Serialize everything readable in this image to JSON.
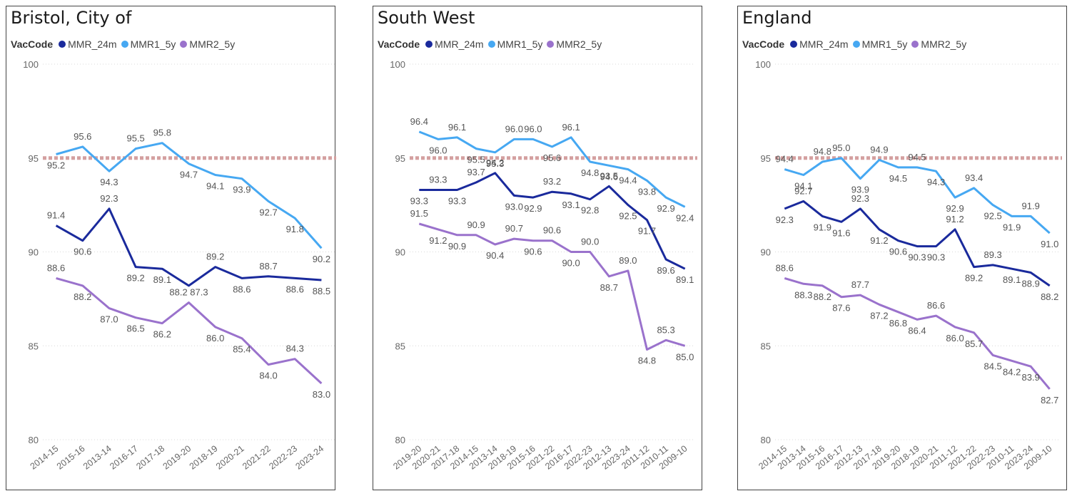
{
  "legend_title": "VacCode",
  "series_names": [
    "MMR_24m",
    "MMR1_5y",
    "MMR2_5y"
  ],
  "colors": {
    "MMR_24m": "#1a2a9c",
    "MMR1_5y": "#46a8f2",
    "MMR2_5y": "#9a72cc",
    "target": "#d4a0a0",
    "axis_text": "#666666",
    "label_text": "#555555"
  },
  "chart_data": [
    {
      "type": "line",
      "title": "Bristol, City of",
      "categories": [
        "2014-15",
        "2015-16",
        "2013-14",
        "2016-17",
        "2017-18",
        "2019-20",
        "2018-19",
        "2020-21",
        "2021-22",
        "2022-23",
        "2023-24"
      ],
      "ylim": [
        80,
        100
      ],
      "yticks": [
        80,
        85,
        90,
        95,
        100
      ],
      "reference_line": 95,
      "series": [
        {
          "name": "MMR_24m",
          "values": [
            91.4,
            90.6,
            92.3,
            89.2,
            89.1,
            88.2,
            89.2,
            88.6,
            88.7,
            88.6,
            88.5
          ]
        },
        {
          "name": "MMR1_5y",
          "values": [
            95.2,
            95.6,
            94.3,
            95.5,
            95.8,
            94.7,
            94.1,
            93.9,
            92.7,
            91.8,
            90.2
          ]
        },
        {
          "name": "MMR2_5y",
          "values": [
            88.6,
            88.2,
            87.0,
            86.5,
            86.2,
            87.3,
            86.0,
            85.4,
            84.0,
            84.3,
            83.0
          ]
        }
      ],
      "labels": [
        [
          "91.4",
          "90.6",
          "92.3",
          "89.2",
          "89.1",
          "",
          "89.2",
          "88.6",
          "88.7",
          "88.6",
          "88.5"
        ],
        [
          "95.2",
          "95.6",
          "94.3",
          "95.5",
          "95.8",
          "94.7",
          "94.1",
          "93.9",
          "92.7",
          "91.8",
          "90.2"
        ],
        [
          "88.6",
          "88.2",
          "87.0",
          "86.5",
          "86.2",
          "88.2 87.3",
          "86.0",
          "85.4",
          "84.0",
          "84.3",
          "83.0"
        ]
      ]
    },
    {
      "type": "line",
      "title": "South West",
      "categories": [
        "2019-20",
        "2020-21",
        "2017-18",
        "2014-15",
        "2013-14",
        "2018-19",
        "2015-16",
        "2021-22",
        "2016-17",
        "2022-23",
        "2012-13",
        "2023-24",
        "2011-12",
        "2010-11",
        "2009-10"
      ],
      "ylim": [
        80,
        100
      ],
      "yticks": [
        80,
        85,
        90,
        95,
        100
      ],
      "reference_line": 95,
      "series": [
        {
          "name": "MMR_24m",
          "values": [
            93.3,
            93.3,
            93.3,
            93.7,
            94.2,
            93.0,
            92.9,
            93.2,
            93.1,
            92.8,
            93.5,
            92.5,
            91.7,
            89.6,
            89.1
          ]
        },
        {
          "name": "MMR1_5y",
          "values": [
            96.4,
            96.0,
            96.1,
            95.5,
            95.3,
            96.0,
            96.0,
            95.6,
            96.1,
            94.8,
            94.6,
            94.4,
            93.8,
            92.9,
            92.4
          ]
        },
        {
          "name": "MMR2_5y",
          "values": [
            91.5,
            91.2,
            90.9,
            90.9,
            90.4,
            90.7,
            90.6,
            90.6,
            90.0,
            90.0,
            88.7,
            89.0,
            84.8,
            85.3,
            85.0
          ]
        }
      ],
      "labels": [
        [
          "93.3",
          "93.3",
          "93.3",
          "93.7",
          "94.2",
          "93.0",
          "92.9",
          "93.2",
          "93.1",
          "92.8",
          "93.5",
          "92.5",
          "91.7",
          "89.6",
          "89.1"
        ],
        [
          "96.4",
          "96.0",
          "96.1",
          "95.5",
          "95.3",
          "96.0",
          "96.0",
          "95.6",
          "96.1",
          "94.8",
          "94.6",
          "94.4",
          "93.8",
          "92.9",
          "92.4"
        ],
        [
          "91.5",
          "91.2",
          "90.9",
          "90.9",
          "90.4",
          "90.7",
          "90.6",
          "90.6",
          "90.0",
          "90.0",
          "88.7",
          "89.0",
          "84.8",
          "85.3",
          "85.0"
        ]
      ]
    },
    {
      "type": "line",
      "title": "England",
      "categories": [
        "2014-15",
        "2013-14",
        "2015-16",
        "2016-17",
        "2012-13",
        "2017-18",
        "2019-20",
        "2018-19",
        "2020-21",
        "2011-12",
        "2021-22",
        "2022-23",
        "2010-11",
        "2023-24",
        "2009-10"
      ],
      "ylim": [
        80,
        100
      ],
      "yticks": [
        80,
        85,
        90,
        95,
        100
      ],
      "reference_line": 95,
      "series": [
        {
          "name": "MMR_24m",
          "values": [
            92.3,
            92.7,
            91.9,
            91.6,
            92.3,
            91.2,
            90.6,
            90.3,
            90.3,
            91.2,
            89.2,
            89.3,
            89.1,
            88.9,
            88.2
          ]
        },
        {
          "name": "MMR1_5y",
          "values": [
            94.4,
            94.1,
            94.8,
            95.0,
            93.9,
            94.9,
            94.5,
            94.5,
            94.3,
            92.9,
            93.4,
            92.5,
            91.9,
            91.9,
            91.0
          ]
        },
        {
          "name": "MMR2_5y",
          "values": [
            88.6,
            88.3,
            88.2,
            87.6,
            87.7,
            87.2,
            86.8,
            86.4,
            86.6,
            86.0,
            85.7,
            84.5,
            84.2,
            83.9,
            82.7
          ]
        }
      ],
      "labels": [
        [
          "92.3",
          "92.7",
          "91.9",
          "91.6",
          "92.3",
          "91.2",
          "90.6",
          "90.3",
          "90.3",
          "91.2",
          "89.2",
          "89.3",
          "89.1",
          "88.9",
          "88.2"
        ],
        [
          "94.4",
          "94.1",
          "94.8",
          "95.0",
          "93.9",
          "94.9",
          "94.5",
          "94.5",
          "94.3",
          "92.9",
          "93.4",
          "92.5",
          "91.9",
          "91.9",
          "91.0"
        ],
        [
          "88.6",
          "88.3",
          "88.2",
          "87.6",
          "87.7",
          "87.2",
          "86.8",
          "86.4",
          "86.6",
          "86.0",
          "85.7",
          "84.5",
          "84.2",
          "83.9",
          "82.7"
        ]
      ]
    }
  ]
}
